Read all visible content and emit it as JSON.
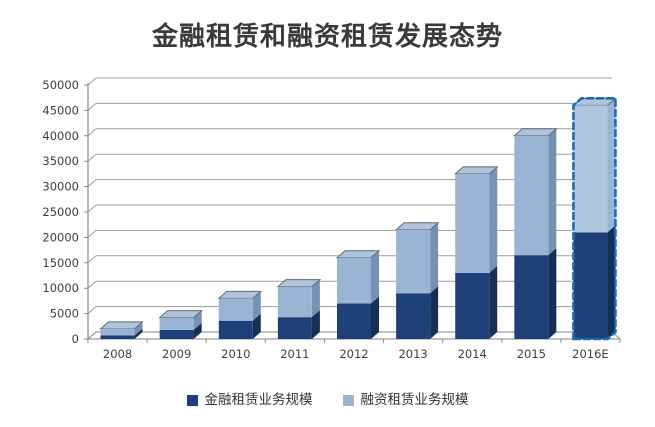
{
  "title": "金融租赁和融资租赁发展态势",
  "legend": {
    "items": [
      {
        "label": "金融租赁业务规模",
        "color": "#1E4078"
      },
      {
        "label": "融资租赁业务规模",
        "color": "#9AB5D4"
      }
    ]
  },
  "colors": {
    "title_text": "#3A3A3A",
    "axis_text": "#3F3F3F",
    "gridline": "#9D9D9D",
    "axis_line": "#8C8C8C",
    "dark_fill": "#1E4078",
    "dark_side": "#152F55",
    "light_fill": "#9AB5D4",
    "light_side": "#7591B4",
    "light_top": "#AFC4DB",
    "top_edge": "#5F6B76",
    "estimate_border": "#1B6CB5",
    "estimate_light_fill": "#B0C6DD"
  },
  "chart_data": {
    "type": "bar",
    "stacked": true,
    "projection": "3d",
    "title": "金融租赁和融资租赁发展态势",
    "categories": [
      "2008",
      "2009",
      "2010",
      "2011",
      "2012",
      "2013",
      "2014",
      "2015",
      "2016E"
    ],
    "series": [
      {
        "name": "金融租赁业务规模",
        "values": [
          700,
          1800,
          3600,
          4300,
          7000,
          9000,
          13000,
          16500,
          21000
        ]
      },
      {
        "name": "融资租赁业务规模",
        "values": [
          1300,
          2400,
          4400,
          6000,
          9000,
          12500,
          19500,
          23500,
          25000
        ]
      }
    ],
    "totals": [
      2000,
      4200,
      8000,
      10300,
      16000,
      21500,
      32500,
      40000,
      46000
    ],
    "xlabel": "",
    "ylabel": "",
    "ylim": [
      0,
      50000
    ],
    "ytick_step": 5000,
    "yticks": [
      "0",
      "5000",
      "10000",
      "15000",
      "20000",
      "25000",
      "30000",
      "35000",
      "40000",
      "45000",
      "50000"
    ],
    "grid": true,
    "legend_position": "bottom",
    "estimate_category": "2016E"
  }
}
